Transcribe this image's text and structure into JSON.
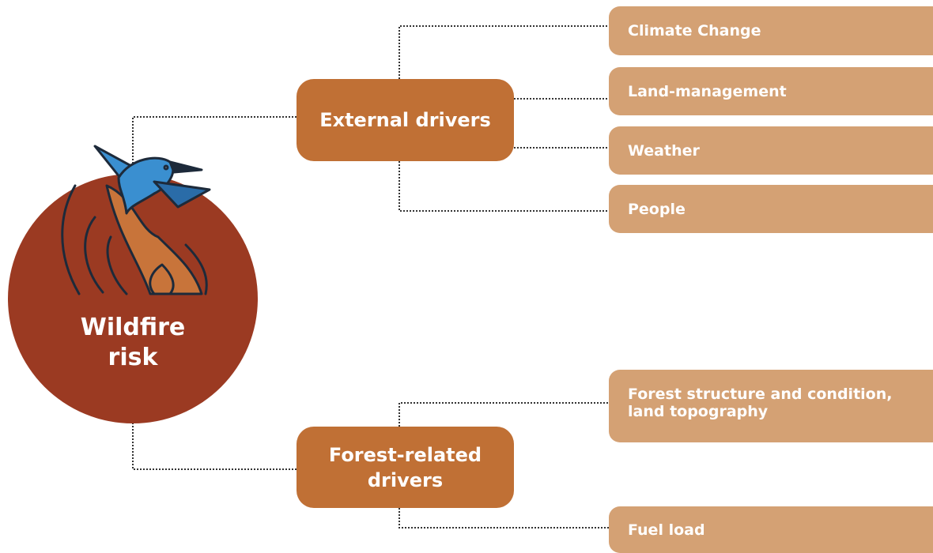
{
  "root": {
    "label": "Wildfire risk"
  },
  "groups": [
    {
      "label": "External drivers",
      "items": [
        "Climate Change",
        "Land-management",
        "Weather",
        "People"
      ]
    },
    {
      "label": "Forest-related drivers",
      "items": [
        "Forest structure and condition, land topography",
        "Fuel load"
      ]
    }
  ]
}
